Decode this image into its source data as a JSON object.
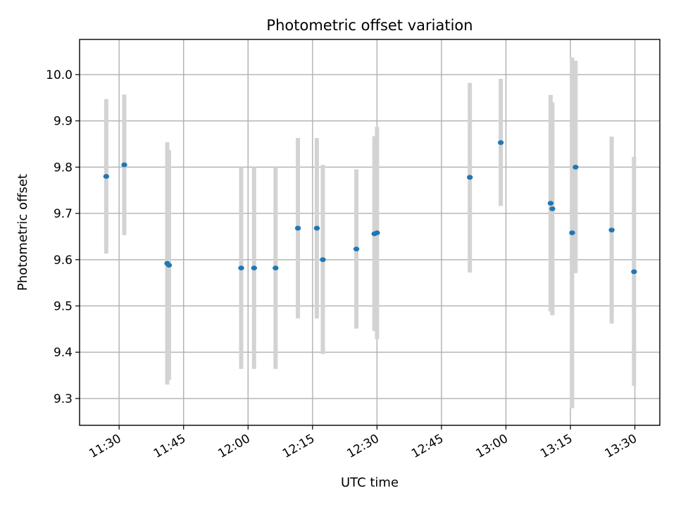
{
  "chart_data": {
    "type": "scatter",
    "title": "Photometric offset variation",
    "xlabel": "UTC time",
    "ylabel": "Photometric offset",
    "xlim": [
      "11:20:48",
      "13:35:48"
    ],
    "ylim": [
      9.242,
      10.076
    ],
    "xticks": [
      "11:30",
      "11:45",
      "12:00",
      "12:15",
      "12:30",
      "12:45",
      "13:00",
      "13:15",
      "13:30"
    ],
    "yticks": [
      "9.3",
      "9.4",
      "9.5",
      "9.6",
      "9.7",
      "9.8",
      "9.9",
      "10.0"
    ],
    "grid": true,
    "point_color": "#1f77b4",
    "errorbar_color": "#d3d3d3",
    "points": [
      {
        "t": "11:27:00",
        "y": 9.78,
        "lo": 9.613,
        "hi": 9.947
      },
      {
        "t": "11:31:12",
        "y": 9.805,
        "lo": 9.653,
        "hi": 9.957
      },
      {
        "t": "11:41:12",
        "y": 9.592,
        "lo": 9.33,
        "hi": 9.854
      },
      {
        "t": "11:41:36",
        "y": 9.588,
        "lo": 9.34,
        "hi": 9.837
      },
      {
        "t": "11:58:24",
        "y": 9.582,
        "lo": 9.364,
        "hi": 9.8
      },
      {
        "t": "12:01:24",
        "y": 9.582,
        "lo": 9.364,
        "hi": 9.8
      },
      {
        "t": "12:06:24",
        "y": 9.582,
        "lo": 9.364,
        "hi": 9.8
      },
      {
        "t": "12:11:36",
        "y": 9.668,
        "lo": 9.473,
        "hi": 9.863
      },
      {
        "t": "12:16:00",
        "y": 9.668,
        "lo": 9.473,
        "hi": 9.863
      },
      {
        "t": "12:17:24",
        "y": 9.6,
        "lo": 9.396,
        "hi": 9.805
      },
      {
        "t": "12:25:12",
        "y": 9.623,
        "lo": 9.451,
        "hi": 9.795
      },
      {
        "t": "12:29:24",
        "y": 9.656,
        "lo": 9.446,
        "hi": 9.867
      },
      {
        "t": "12:30:00",
        "y": 9.658,
        "lo": 9.428,
        "hi": 9.887
      },
      {
        "t": "12:51:36",
        "y": 9.778,
        "lo": 9.572,
        "hi": 9.982
      },
      {
        "t": "12:58:48",
        "y": 9.853,
        "lo": 9.716,
        "hi": 9.991
      },
      {
        "t": "13:10:24",
        "y": 9.722,
        "lo": 9.488,
        "hi": 9.956
      },
      {
        "t": "13:10:48",
        "y": 9.71,
        "lo": 9.48,
        "hi": 9.94
      },
      {
        "t": "13:15:24",
        "y": 9.658,
        "lo": 9.279,
        "hi": 10.037
      },
      {
        "t": "13:16:12",
        "y": 9.8,
        "lo": 9.571,
        "hi": 10.03
      },
      {
        "t": "13:24:36",
        "y": 9.664,
        "lo": 9.462,
        "hi": 9.866
      },
      {
        "t": "13:29:48",
        "y": 9.574,
        "lo": 9.327,
        "hi": 9.822
      }
    ]
  }
}
